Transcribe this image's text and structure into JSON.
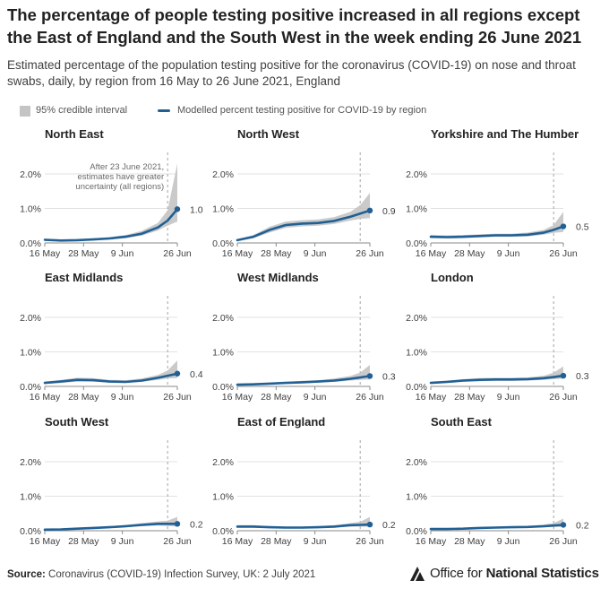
{
  "header": {
    "title": "The percentage of people testing positive increased in all regions except the East of England and the South West in the week ending 26 June 2021",
    "subtitle": "Estimated percentage of the population testing positive for the coronavirus (COVID-19) on nose and throat swabs, daily, by region from 16 May to 26 June 2021, England"
  },
  "legend": {
    "interval_label": "95% credible interval",
    "line_label": "Modelled percent testing positive for COVID-19 by region"
  },
  "colors": {
    "line": "#206095",
    "interval": "#c4c4c4",
    "grid": "#d9d9d9",
    "axis": "#8a8a8a"
  },
  "chart_data": {
    "type": "line",
    "x_unit": "date (2021)",
    "x_ticks": [
      "16 May",
      "28 May",
      "9 Jun",
      "26 Jun"
    ],
    "x_tick_dates": [
      "2021-05-16",
      "2021-05-28",
      "2021-06-09",
      "2021-06-26"
    ],
    "x_range": [
      "2021-05-16",
      "2021-06-26"
    ],
    "y_ticks": [
      "0.0%",
      "1.0%",
      "2.0%"
    ],
    "y_tick_values": [
      0,
      1,
      2
    ],
    "ylim": [
      0,
      2.4
    ],
    "grid": true,
    "reference_line_date": "2021-06-23",
    "annotation": "After 23 June 2021, estimates have greater uncertainty (all regions)",
    "annotation_lines": [
      "After 23 June 2021,",
      "estimates have greater",
      "uncertainty (all regions)"
    ],
    "panels": [
      {
        "name": "North East",
        "end_label": "1.0",
        "x": [
          "2021-05-16",
          "2021-05-21",
          "2021-05-26",
          "2021-05-31",
          "2021-06-05",
          "2021-06-10",
          "2021-06-15",
          "2021-06-20",
          "2021-06-23",
          "2021-06-26"
        ],
        "y": [
          0.09,
          0.07,
          0.08,
          0.1,
          0.13,
          0.18,
          0.27,
          0.45,
          0.65,
          0.98
        ],
        "lower": [
          0.06,
          0.05,
          0.06,
          0.08,
          0.1,
          0.14,
          0.21,
          0.36,
          0.5,
          0.62
        ],
        "upper": [
          0.13,
          0.1,
          0.11,
          0.13,
          0.17,
          0.23,
          0.35,
          0.58,
          0.95,
          2.3
        ]
      },
      {
        "name": "North West",
        "end_label": "0.9",
        "x": [
          "2021-05-16",
          "2021-05-21",
          "2021-05-26",
          "2021-05-31",
          "2021-06-05",
          "2021-06-10",
          "2021-06-15",
          "2021-06-20",
          "2021-06-23",
          "2021-06-26"
        ],
        "y": [
          0.08,
          0.18,
          0.38,
          0.52,
          0.56,
          0.58,
          0.64,
          0.76,
          0.85,
          0.94
        ],
        "lower": [
          0.06,
          0.14,
          0.3,
          0.44,
          0.48,
          0.5,
          0.55,
          0.65,
          0.7,
          0.72
        ],
        "upper": [
          0.11,
          0.23,
          0.47,
          0.62,
          0.66,
          0.68,
          0.75,
          0.9,
          1.1,
          1.45
        ]
      },
      {
        "name": "Yorkshire and The Humber",
        "end_label": "0.5",
        "x": [
          "2021-05-16",
          "2021-05-21",
          "2021-05-26",
          "2021-05-31",
          "2021-06-05",
          "2021-06-10",
          "2021-06-15",
          "2021-06-20",
          "2021-06-23",
          "2021-06-26"
        ],
        "y": [
          0.18,
          0.17,
          0.18,
          0.2,
          0.22,
          0.22,
          0.24,
          0.3,
          0.38,
          0.48
        ],
        "lower": [
          0.14,
          0.13,
          0.14,
          0.16,
          0.18,
          0.18,
          0.19,
          0.24,
          0.29,
          0.32
        ],
        "upper": [
          0.23,
          0.22,
          0.23,
          0.25,
          0.27,
          0.27,
          0.3,
          0.38,
          0.52,
          0.9
        ]
      },
      {
        "name": "East Midlands",
        "end_label": "0.4",
        "x": [
          "2021-05-16",
          "2021-05-21",
          "2021-05-26",
          "2021-05-31",
          "2021-06-05",
          "2021-06-10",
          "2021-06-15",
          "2021-06-20",
          "2021-06-23",
          "2021-06-26"
        ],
        "y": [
          0.1,
          0.14,
          0.19,
          0.18,
          0.14,
          0.13,
          0.17,
          0.25,
          0.31,
          0.37
        ],
        "lower": [
          0.07,
          0.1,
          0.14,
          0.14,
          0.11,
          0.1,
          0.13,
          0.19,
          0.23,
          0.24
        ],
        "upper": [
          0.14,
          0.19,
          0.25,
          0.24,
          0.19,
          0.18,
          0.23,
          0.33,
          0.46,
          0.75
        ]
      },
      {
        "name": "West Midlands",
        "end_label": "0.3",
        "x": [
          "2021-05-16",
          "2021-05-21",
          "2021-05-26",
          "2021-05-31",
          "2021-06-05",
          "2021-06-10",
          "2021-06-15",
          "2021-06-20",
          "2021-06-23",
          "2021-06-26"
        ],
        "y": [
          0.05,
          0.06,
          0.08,
          0.1,
          0.12,
          0.14,
          0.17,
          0.22,
          0.26,
          0.3
        ],
        "lower": [
          0.03,
          0.04,
          0.06,
          0.08,
          0.09,
          0.11,
          0.13,
          0.17,
          0.19,
          0.2
        ],
        "upper": [
          0.07,
          0.09,
          0.11,
          0.13,
          0.16,
          0.18,
          0.23,
          0.3,
          0.4,
          0.62
        ]
      },
      {
        "name": "London",
        "end_label": "0.3",
        "x": [
          "2021-05-16",
          "2021-05-21",
          "2021-05-26",
          "2021-05-31",
          "2021-06-05",
          "2021-06-10",
          "2021-06-15",
          "2021-06-20",
          "2021-06-23",
          "2021-06-26"
        ],
        "y": [
          0.1,
          0.13,
          0.17,
          0.19,
          0.2,
          0.2,
          0.21,
          0.24,
          0.27,
          0.31
        ],
        "lower": [
          0.07,
          0.1,
          0.13,
          0.15,
          0.16,
          0.16,
          0.17,
          0.19,
          0.21,
          0.22
        ],
        "upper": [
          0.14,
          0.17,
          0.21,
          0.24,
          0.25,
          0.25,
          0.26,
          0.31,
          0.4,
          0.58
        ]
      },
      {
        "name": "South West",
        "end_label": "0.2",
        "x": [
          "2021-05-16",
          "2021-05-21",
          "2021-05-26",
          "2021-05-31",
          "2021-06-05",
          "2021-06-10",
          "2021-06-15",
          "2021-06-20",
          "2021-06-23",
          "2021-06-26"
        ],
        "y": [
          0.03,
          0.04,
          0.06,
          0.08,
          0.1,
          0.13,
          0.17,
          0.2,
          0.2,
          0.2
        ],
        "lower": [
          0.02,
          0.03,
          0.04,
          0.06,
          0.08,
          0.1,
          0.13,
          0.15,
          0.14,
          0.12
        ],
        "upper": [
          0.05,
          0.06,
          0.08,
          0.1,
          0.13,
          0.17,
          0.22,
          0.27,
          0.29,
          0.4
        ]
      },
      {
        "name": "East of England",
        "end_label": "0.2",
        "x": [
          "2021-05-16",
          "2021-05-21",
          "2021-05-26",
          "2021-05-31",
          "2021-06-05",
          "2021-06-10",
          "2021-06-15",
          "2021-06-20",
          "2021-06-23",
          "2021-06-26"
        ],
        "y": [
          0.12,
          0.12,
          0.1,
          0.09,
          0.09,
          0.1,
          0.12,
          0.16,
          0.17,
          0.18
        ],
        "lower": [
          0.09,
          0.09,
          0.07,
          0.07,
          0.07,
          0.08,
          0.09,
          0.12,
          0.12,
          0.11
        ],
        "upper": [
          0.16,
          0.16,
          0.13,
          0.12,
          0.12,
          0.13,
          0.16,
          0.22,
          0.26,
          0.4
        ]
      },
      {
        "name": "South East",
        "end_label": "0.2",
        "x": [
          "2021-05-16",
          "2021-05-21",
          "2021-05-26",
          "2021-05-31",
          "2021-06-05",
          "2021-06-10",
          "2021-06-15",
          "2021-06-20",
          "2021-06-23",
          "2021-06-26"
        ],
        "y": [
          0.05,
          0.05,
          0.06,
          0.08,
          0.09,
          0.1,
          0.11,
          0.13,
          0.15,
          0.17
        ],
        "lower": [
          0.03,
          0.04,
          0.05,
          0.06,
          0.07,
          0.08,
          0.09,
          0.1,
          0.11,
          0.11
        ],
        "upper": [
          0.07,
          0.07,
          0.08,
          0.1,
          0.12,
          0.13,
          0.14,
          0.18,
          0.22,
          0.35
        ]
      }
    ]
  },
  "footer": {
    "source_label": "Source:",
    "source_text": "Coronavirus (COVID-19) Infection Survey, UK: 2 July 2021",
    "logo_text_regular": "Office for",
    "logo_text_bold": "National Statistics"
  }
}
